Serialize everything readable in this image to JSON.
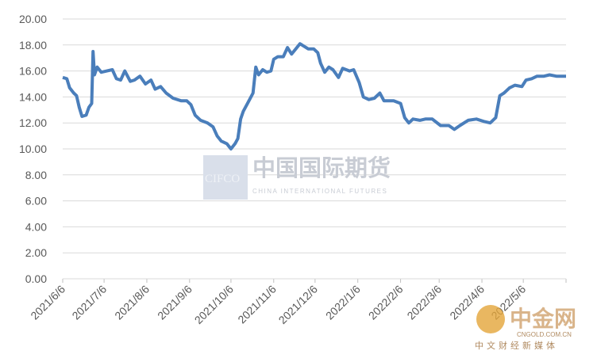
{
  "chart_data": {
    "type": "line",
    "x": [
      "2021/6/6",
      "2021/6/9",
      "2021/6/11",
      "2021/6/14",
      "2021/6/16",
      "2021/6/18",
      "2021/6/20",
      "2021/6/23",
      "2021/6/25",
      "2021/6/27",
      "2021/6/28",
      "2021/6/29",
      "2021/7/1",
      "2021/7/4",
      "2021/7/8",
      "2021/7/12",
      "2021/7/15",
      "2021/7/18",
      "2021/7/21",
      "2021/7/25",
      "2021/7/28",
      "2021/8/1",
      "2021/8/5",
      "2021/8/9",
      "2021/8/12",
      "2021/8/16",
      "2021/8/20",
      "2021/8/25",
      "2021/8/31",
      "2021/9/4",
      "2021/9/7",
      "2021/9/10",
      "2021/9/14",
      "2021/9/19",
      "2021/9/23",
      "2021/9/26",
      "2021/9/29",
      "2021/10/3",
      "2021/10/6",
      "2021/10/9",
      "2021/10/11",
      "2021/10/13",
      "2021/10/15",
      "2021/10/18",
      "2021/10/22",
      "2021/10/24",
      "2021/10/26",
      "2021/10/29",
      "2021/11/1",
      "2021/11/4",
      "2021/11/6",
      "2021/11/9",
      "2021/11/13",
      "2021/11/16",
      "2021/11/19",
      "2021/11/22",
      "2021/11/25",
      "2021/11/28",
      "2021/12/1",
      "2021/12/5",
      "2021/12/8",
      "2021/12/10",
      "2021/12/13",
      "2021/12/16",
      "2021/12/19",
      "2021/12/23",
      "2021/12/26",
      "2021/12/31",
      "2022/1/3",
      "2022/1/7",
      "2022/1/10",
      "2022/1/14",
      "2022/1/18",
      "2022/1/22",
      "2022/1/25",
      "2022/2/1",
      "2022/2/6",
      "2022/2/9",
      "2022/2/12",
      "2022/2/15",
      "2022/2/20",
      "2022/2/24",
      "2022/3/1",
      "2022/3/7",
      "2022/3/13",
      "2022/3/17",
      "2022/3/21",
      "2022/3/27",
      "2022/4/2",
      "2022/4/8",
      "2022/4/12",
      "2022/4/16",
      "2022/4/19",
      "2022/4/22",
      "2022/4/26",
      "2022/4/30",
      "2022/5/5",
      "2022/5/8",
      "2022/5/12",
      "2022/5/16",
      "2022/5/21",
      "2022/5/25",
      "2022/5/30",
      "2022/6/2",
      "2022/6/6"
    ],
    "series": [
      {
        "color": "#4a7ebb",
        "values": [
          15.5,
          15.4,
          14.7,
          14.3,
          14.1,
          13.2,
          12.5,
          12.6,
          13.2,
          13.5,
          17.5,
          15.7,
          16.3,
          15.9,
          16.0,
          16.1,
          15.4,
          15.3,
          16.0,
          15.2,
          15.3,
          15.6,
          15.0,
          15.3,
          14.6,
          14.8,
          14.3,
          13.9,
          13.7,
          13.7,
          13.4,
          12.6,
          12.2,
          12.0,
          11.7,
          11.0,
          10.6,
          10.4,
          10.0,
          10.4,
          10.8,
          12.3,
          12.9,
          13.5,
          14.3,
          16.3,
          15.7,
          16.1,
          15.9,
          16.0,
          16.9,
          17.1,
          17.1,
          17.8,
          17.3,
          17.7,
          18.1,
          17.9,
          17.7,
          17.7,
          17.4,
          16.6,
          15.9,
          16.3,
          16.1,
          15.5,
          16.2,
          16.0,
          16.1,
          15.1,
          14.0,
          13.8,
          13.9,
          14.3,
          13.7,
          13.7,
          13.5,
          12.4,
          12.0,
          12.3,
          12.2,
          12.3,
          12.3,
          11.8,
          11.8,
          11.5,
          11.8,
          12.2,
          12.3,
          12.1,
          12.0,
          12.4,
          14.1,
          14.3,
          14.7,
          14.9,
          14.8,
          15.3,
          15.4,
          15.6,
          15.6,
          15.7,
          15.6,
          15.6,
          15.6
        ]
      }
    ],
    "xlim": [
      "2021/6/6",
      "2022/6/6"
    ],
    "xticks": [
      "2021/6/6",
      "2021/7/6",
      "2021/8/6",
      "2021/9/6",
      "2021/10/6",
      "2021/11/6",
      "2021/12/6",
      "2022/1/6",
      "2022/2/6",
      "2022/3/6",
      "2022/4/6",
      "2022/5/6"
    ],
    "ylim": [
      0,
      20
    ],
    "yticks": [
      {
        "value": 0,
        "label": "0.00"
      },
      {
        "value": 2,
        "label": "2.00"
      },
      {
        "value": 4,
        "label": "4.00"
      },
      {
        "value": 6,
        "label": "6.00"
      },
      {
        "value": 8,
        "label": "8.00"
      },
      {
        "value": 10,
        "label": "10.00"
      },
      {
        "value": 12,
        "label": "12.00"
      },
      {
        "value": 14,
        "label": "14.00"
      },
      {
        "value": 16,
        "label": "16.00"
      },
      {
        "value": 18,
        "label": "18.00"
      },
      {
        "value": 20,
        "label": "20.00"
      }
    ],
    "grid": true,
    "watermark": {
      "logo": "CIFCO",
      "name": "中国国际期货",
      "name_en": "CHINA INTERNATIONAL FUTURES"
    },
    "source_logo": {
      "name": "中金网",
      "url": "CNGOLD.COM.CN",
      "tagline": "中文财经新媒体"
    }
  }
}
